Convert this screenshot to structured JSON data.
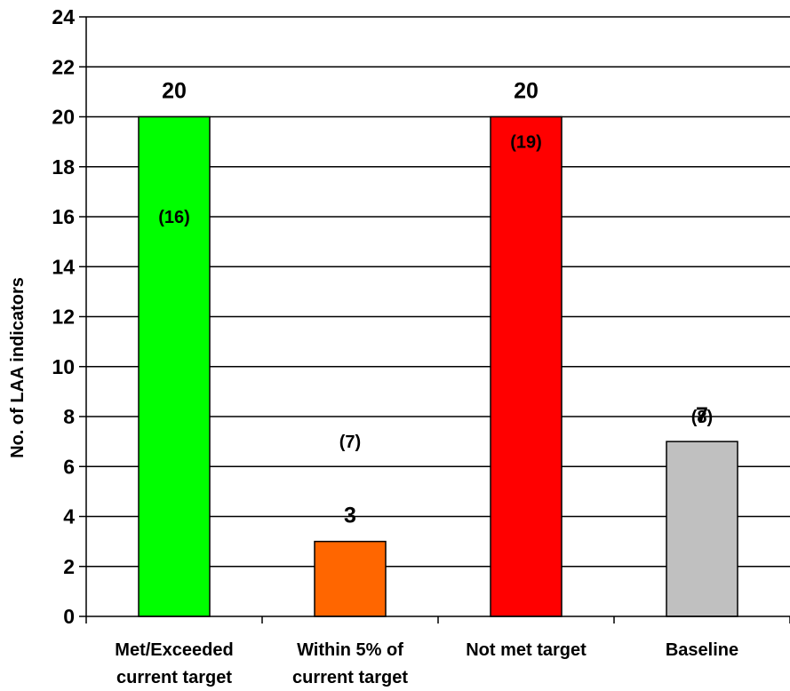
{
  "chart_data": {
    "type": "bar",
    "title": "",
    "xlabel": "",
    "ylabel": "No. of LAA indicators",
    "ylim": [
      0,
      24
    ],
    "yticks": [
      "0",
      "2",
      "4",
      "6",
      "8",
      "10",
      "12",
      "14",
      "16",
      "18",
      "20",
      "22",
      "24"
    ],
    "grid": true,
    "legend": "none",
    "categories": [
      [
        "Met/Exceeded",
        "current target"
      ],
      [
        "Within 5% of",
        "current target"
      ],
      [
        "Not met target"
      ],
      [
        "Baseline"
      ]
    ],
    "values": [
      20,
      3,
      20,
      7
    ],
    "value_labels": [
      "20",
      "3",
      "20",
      "7"
    ],
    "previous_labels": [
      "(16)",
      "(7)",
      "(19)",
      "(8)"
    ],
    "previous_values": [
      16,
      7,
      19,
      8
    ],
    "colors": [
      "#00ff00",
      "#ff6600",
      "#ff0000",
      "#c0c0c0"
    ]
  }
}
